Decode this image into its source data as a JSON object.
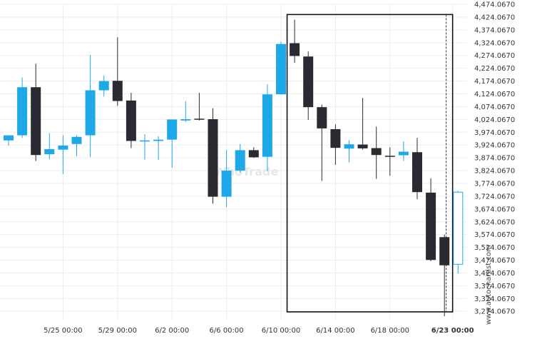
{
  "chart_data": {
    "type": "candlestick",
    "ylim": [
      3244.067,
      4474.067
    ],
    "y_ticks": [
      "4,474.0670",
      "4,424.0670",
      "4,374.0670",
      "4,324.0670",
      "4,274.0670",
      "4,224.0670",
      "4,174.0670",
      "4,124.0670",
      "4,074.0670",
      "4,024.0670",
      "3,974.0670",
      "3,924.0670",
      "3,874.0670",
      "3,824.0670",
      "3,774.0670",
      "3,724.0670",
      "3,674.0670",
      "3,624.0670",
      "3,574.0670",
      "3,524.0670",
      "3,474.0670",
      "3,424.0670",
      "3,374.0670",
      "3,324.0670",
      "3,274.0670"
    ],
    "x_ticks": [
      {
        "label": "5/25 00:00",
        "index": 4,
        "bold": false
      },
      {
        "label": "5/29 00:00",
        "index": 8,
        "bold": false
      },
      {
        "label": "6/2 00:00",
        "index": 12,
        "bold": false
      },
      {
        "label": "6/6 00:00",
        "index": 16,
        "bold": false
      },
      {
        "label": "6/10 00:00",
        "index": 20,
        "bold": false
      },
      {
        "label": "6/14 00:00",
        "index": 24,
        "bold": false
      },
      {
        "label": "6/18 00:00",
        "index": 28,
        "bold": false
      },
      {
        "label": "6/23 00:00",
        "index": 32.6,
        "bold": true
      }
    ],
    "candles": [
      {
        "o": 3942,
        "h": 3962,
        "l": 3922,
        "c": 3962
      },
      {
        "o": 3962,
        "h": 4188,
        "l": 3952,
        "c": 4150
      },
      {
        "o": 4150,
        "h": 4242,
        "l": 3862,
        "c": 3885
      },
      {
        "o": 3888,
        "h": 3970,
        "l": 3868,
        "c": 3908
      },
      {
        "o": 3906,
        "h": 3962,
        "l": 3810,
        "c": 3922
      },
      {
        "o": 3928,
        "h": 3962,
        "l": 3880,
        "c": 3956
      },
      {
        "o": 3962,
        "h": 4276,
        "l": 3877,
        "c": 4138
      },
      {
        "o": 4138,
        "h": 4196,
        "l": 4114,
        "c": 4174
      },
      {
        "o": 4175,
        "h": 4345,
        "l": 4077,
        "c": 4096
      },
      {
        "o": 4098,
        "h": 4128,
        "l": 3912,
        "c": 3940
      },
      {
        "o": 3938,
        "h": 3966,
        "l": 3867,
        "c": 3942
      },
      {
        "o": 3940,
        "h": 3958,
        "l": 3866,
        "c": 3945
      },
      {
        "o": 3945,
        "h": 4024,
        "l": 3835,
        "c": 4024
      },
      {
        "o": 4020,
        "h": 4096,
        "l": 4014,
        "c": 4025
      },
      {
        "o": 4027,
        "h": 4128,
        "l": 4020,
        "c": 4023
      },
      {
        "o": 4025,
        "h": 4068,
        "l": 3695,
        "c": 3722
      },
      {
        "o": 3722,
        "h": 3904,
        "l": 3682,
        "c": 3824
      },
      {
        "o": 3824,
        "h": 3928,
        "l": 3816,
        "c": 3904
      },
      {
        "o": 3904,
        "h": 3915,
        "l": 3874,
        "c": 3876
      },
      {
        "o": 3878,
        "h": 4162,
        "l": 3822,
        "c": 4122
      },
      {
        "o": 4122,
        "h": 4328,
        "l": 4122,
        "c": 4319
      },
      {
        "o": 4322,
        "h": 4414,
        "l": 4245,
        "c": 4272
      },
      {
        "o": 4270,
        "h": 4290,
        "l": 4022,
        "c": 4072
      },
      {
        "o": 4072,
        "h": 4082,
        "l": 3784,
        "c": 3989
      },
      {
        "o": 3986,
        "h": 4005,
        "l": 3847,
        "c": 3913
      },
      {
        "o": 3910,
        "h": 3942,
        "l": 3857,
        "c": 3927
      },
      {
        "o": 3926,
        "h": 4108,
        "l": 3906,
        "c": 3911
      },
      {
        "o": 3912,
        "h": 3996,
        "l": 3792,
        "c": 3885
      },
      {
        "o": 3882,
        "h": 3915,
        "l": 3804,
        "c": 3881
      },
      {
        "o": 3884,
        "h": 3938,
        "l": 3862,
        "c": 3898
      },
      {
        "o": 3896,
        "h": 3952,
        "l": 3712,
        "c": 3740
      },
      {
        "o": 3738,
        "h": 3794,
        "l": 3470,
        "c": 3475
      },
      {
        "o": 3564,
        "h": 3574,
        "l": 3255,
        "c": 3454
      },
      {
        "o": 3458,
        "h": 3745,
        "l": 3422,
        "c": 3740
      }
    ],
    "annotation": {
      "type": "rectangle",
      "from_index": 21,
      "to_index": 32.6,
      "y_top": 4434,
      "y_bottom": 3272
    },
    "vline_index": 32.6,
    "colors": {
      "bull": "#1fa8e8",
      "bear": "#2a2a33",
      "box": "#111111",
      "grid": "#ededed"
    }
  },
  "watermark": "WhoTrade",
  "credit": "www.autochartist.com"
}
